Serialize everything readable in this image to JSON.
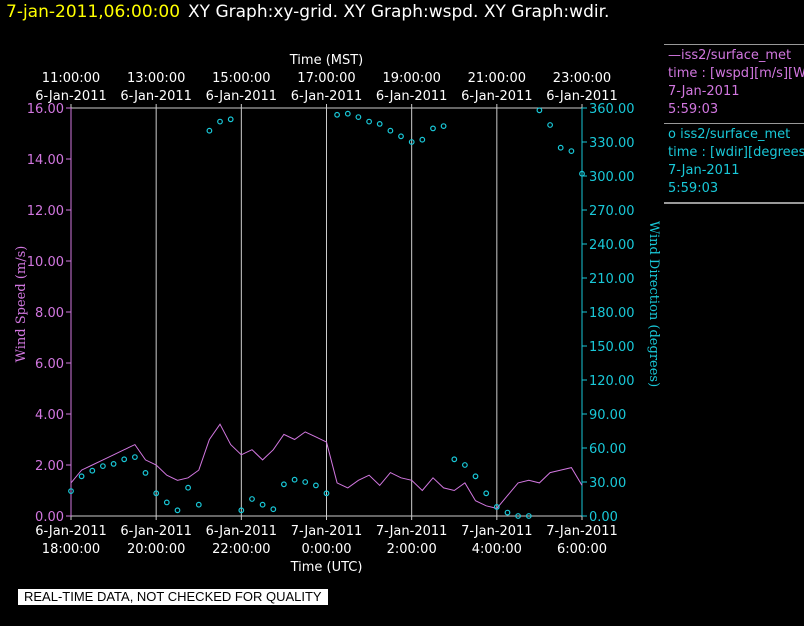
{
  "header": {
    "timestamp": "7-jan-2011,06:00:00",
    "graphs": "XY Graph:xy-grid.  XY Graph:wspd.  XY Graph:wdir."
  },
  "legend": {
    "series1_name": "iss2/surface_met",
    "series1_desc": "time : [wspd][m/s][Wind",
    "series1_date": "7-Jan-2011",
    "series1_time": "5:59:03",
    "series2_name": "iss2/surface_met",
    "series2_desc": "time : [wdir][degrees][V",
    "series2_date": "7-Jan-2011",
    "series2_time": "5:59:03"
  },
  "disclaimer": "REAL-TIME DATA, NOT CHECKED FOR QUALITY",
  "chart_data": {
    "type": "line",
    "top_axis_title": "Time (MST)",
    "bottom_axis_title": "Time (UTC)",
    "left_axis_title": "Wind  Speed  (m/s)",
    "right_axis_title": "Wind  Direction  (degrees)",
    "top_ticks": [
      {
        "time": "11:00:00",
        "date": "6-Jan-2011"
      },
      {
        "time": "13:00:00",
        "date": "6-Jan-2011"
      },
      {
        "time": "15:00:00",
        "date": "6-Jan-2011"
      },
      {
        "time": "17:00:00",
        "date": "6-Jan-2011"
      },
      {
        "time": "19:00:00",
        "date": "6-Jan-2011"
      },
      {
        "time": "21:00:00",
        "date": "6-Jan-2011"
      },
      {
        "time": "23:00:00",
        "date": "6-Jan-2011"
      }
    ],
    "bottom_ticks": [
      {
        "date": "6-Jan-2011",
        "time": "18:00:00"
      },
      {
        "date": "6-Jan-2011",
        "time": "20:00:00"
      },
      {
        "date": "6-Jan-2011",
        "time": "22:00:00"
      },
      {
        "date": "7-Jan-2011",
        "time": "0:00:00"
      },
      {
        "date": "7-Jan-2011",
        "time": "2:00:00"
      },
      {
        "date": "7-Jan-2011",
        "time": "4:00:00"
      },
      {
        "date": "7-Jan-2011",
        "time": "6:00:00"
      }
    ],
    "x_range_utc_hours": [
      18,
      30
    ],
    "left_ylim": [
      0,
      16
    ],
    "left_ticks": [
      "0.00",
      "2.00",
      "4.00",
      "6.00",
      "8.00",
      "10.00",
      "12.00",
      "14.00",
      "16.00"
    ],
    "right_ylim": [
      0,
      360
    ],
    "right_ticks": [
      "0.00",
      "30.00",
      "60.00",
      "90.00",
      "120.00",
      "150.00",
      "180.00",
      "210.00",
      "240.00",
      "270.00",
      "300.00",
      "330.00",
      "360.00"
    ],
    "colors": {
      "wspd": "#d277e0",
      "wdir": "#19c8d8",
      "grid": "#cccccc"
    },
    "wspd": {
      "name": "iss2/surface_met",
      "x": [
        18.0,
        18.25,
        18.5,
        18.75,
        19.0,
        19.25,
        19.5,
        19.75,
        20.0,
        20.25,
        20.5,
        20.75,
        21.0,
        21.25,
        21.5,
        21.75,
        22.0,
        22.25,
        22.5,
        22.75,
        23.0,
        23.25,
        23.5,
        23.75,
        24.0,
        24.25,
        24.5,
        24.75,
        25.0,
        25.25,
        25.5,
        25.75,
        26.0,
        26.25,
        26.5,
        26.75,
        27.0,
        27.25,
        27.5,
        27.75,
        28.0,
        28.25,
        28.5,
        28.75,
        29.0,
        29.25,
        29.5,
        29.75,
        30.0
      ],
      "y": [
        1.3,
        1.8,
        2.0,
        2.2,
        2.4,
        2.6,
        2.8,
        2.2,
        2.0,
        1.6,
        1.4,
        1.5,
        1.8,
        3.0,
        3.6,
        2.8,
        2.4,
        2.6,
        2.2,
        2.6,
        3.2,
        3.0,
        3.3,
        3.1,
        2.9,
        1.3,
        1.1,
        1.4,
        1.6,
        1.2,
        1.7,
        1.5,
        1.4,
        1.0,
        1.5,
        1.1,
        1.0,
        1.3,
        0.6,
        0.4,
        0.3,
        0.8,
        1.3,
        1.4,
        1.3,
        1.7,
        1.8,
        1.9,
        1.2
      ]
    },
    "wdir": {
      "name": "iss2/surface_met",
      "x": [
        18.0,
        18.25,
        18.5,
        18.75,
        19.0,
        19.25,
        19.5,
        19.75,
        20.0,
        20.25,
        20.5,
        20.75,
        21.0,
        21.25,
        21.5,
        21.75,
        22.0,
        22.25,
        22.5,
        22.75,
        23.0,
        23.25,
        23.5,
        23.75,
        24.0,
        24.25,
        24.5,
        24.75,
        25.0,
        25.25,
        25.5,
        25.75,
        26.0,
        26.25,
        26.5,
        26.75,
        27.0,
        27.25,
        27.5,
        27.75,
        28.0,
        28.25,
        28.5,
        28.75,
        29.0,
        29.25,
        29.5,
        29.75,
        30.0
      ],
      "y": [
        22,
        35,
        40,
        44,
        46,
        50,
        52,
        38,
        20,
        12,
        5,
        25,
        10,
        340,
        348,
        350,
        5,
        15,
        10,
        6,
        28,
        32,
        30,
        27,
        20,
        354,
        355,
        352,
        348,
        346,
        340,
        335,
        330,
        332,
        342,
        344,
        50,
        45,
        35,
        20,
        8,
        3,
        0,
        0,
        358,
        345,
        325,
        322,
        302
      ]
    }
  }
}
